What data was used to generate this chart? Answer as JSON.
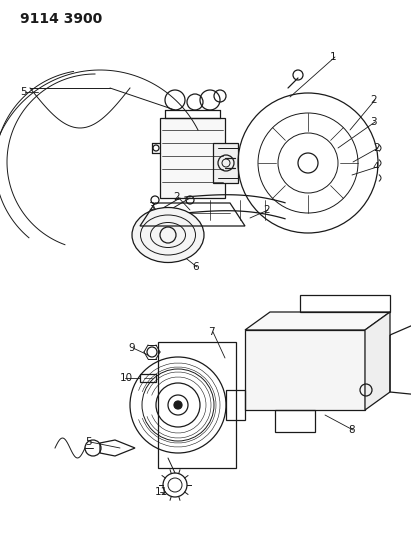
{
  "title_code": "9114 3900",
  "bg_color": "#ffffff",
  "line_color": "#1a1a1a",
  "title_fontsize": 10,
  "fig_width": 4.11,
  "fig_height": 5.33,
  "dpi": 100,
  "label_fontsize": 7.5
}
